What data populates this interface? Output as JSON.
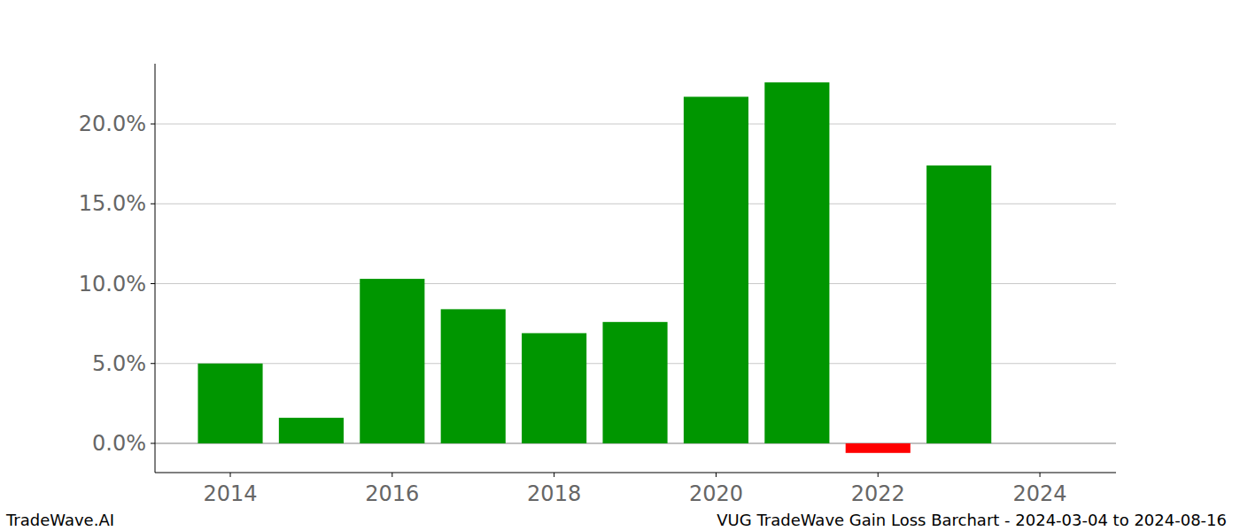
{
  "chart_data": {
    "type": "bar",
    "title": "VUG TradeWave Gain Loss Barchart - 2024-03-04 to 2024-08-16",
    "annotations": [
      "TradeWave.AI"
    ],
    "x": [
      2014,
      2015,
      2016,
      2017,
      2018,
      2019,
      2020,
      2021,
      2022,
      2023
    ],
    "values": [
      5.0,
      1.6,
      10.3,
      8.4,
      6.9,
      7.6,
      21.7,
      22.6,
      -0.6,
      17.4
    ],
    "colors": [
      "#009600",
      "#009600",
      "#009600",
      "#009600",
      "#009600",
      "#009600",
      "#009600",
      "#009600",
      "#ff0000",
      "#009600"
    ],
    "xlim": [
      2013.07,
      2024.94
    ],
    "xticks": [
      2014,
      2016,
      2018,
      2020,
      2022,
      2024
    ],
    "ylim": [
      -1.83,
      23.77
    ],
    "yticks": [
      {
        "value": 0,
        "label": "0.0%"
      },
      {
        "value": 5,
        "label": "5.0%"
      },
      {
        "value": 10,
        "label": "10.0%"
      },
      {
        "value": 15,
        "label": "15.0%"
      },
      {
        "value": 20,
        "label": "20.0%"
      }
    ],
    "grid": true
  }
}
